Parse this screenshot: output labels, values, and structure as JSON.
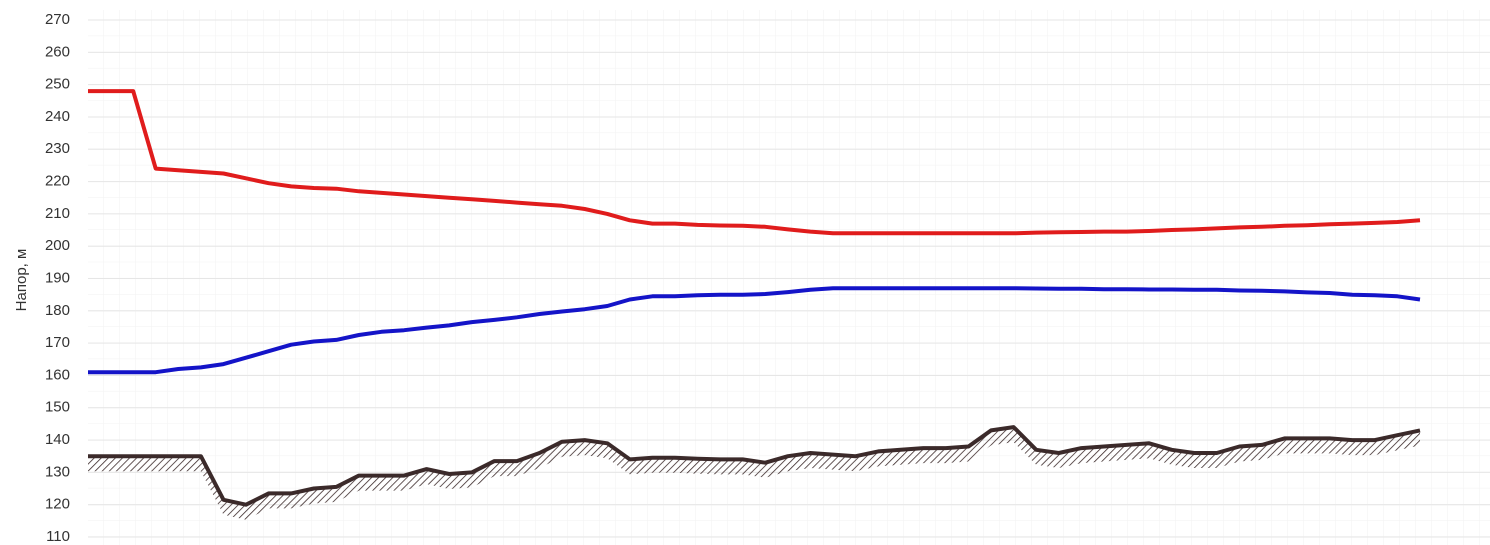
{
  "chart_data": {
    "type": "line",
    "y_label": "Напор, м",
    "categories": [
      null,
      null,
      null,
      null,
      null,
      null,
      null,
      null,
      null,
      null,
      null,
      null,
      null,
      null,
      null,
      null,
      null,
      null,
      null,
      null,
      null,
      null,
      null,
      null,
      null,
      null,
      null,
      null,
      null,
      null,
      null,
      null,
      null,
      null,
      null,
      null,
      null,
      null,
      null,
      null,
      null,
      null,
      null,
      null,
      null,
      null,
      null,
      null,
      null,
      null,
      null,
      null,
      null,
      null,
      null,
      null,
      null,
      null,
      null,
      null
    ],
    "series": [
      {
        "color": "#e01c1c",
        "values": [
          248,
          248,
          248,
          224,
          223.5,
          223,
          222.5,
          221,
          219.5,
          218.5,
          218,
          217.8,
          217,
          216.5,
          216,
          215.5,
          215,
          214.5,
          214,
          213.5,
          213,
          212.5,
          211.5,
          210,
          208,
          207,
          207,
          206.6,
          206.4,
          206.3,
          206,
          205.2,
          204.5,
          204,
          204,
          204,
          204,
          204,
          204,
          204,
          204,
          204,
          204.2,
          204.3,
          204.4,
          204.5,
          204.5,
          204.7,
          205,
          205.2,
          205.5,
          205.8,
          206,
          206.3,
          206.5,
          206.8,
          207,
          207.2,
          207.5,
          208
        ]
      },
      {
        "color": "#1414c8",
        "values": [
          161,
          161,
          161,
          161,
          162,
          162.5,
          163.5,
          165.5,
          167.5,
          169.5,
          170.5,
          171,
          172.5,
          173.5,
          174,
          174.8,
          175.5,
          176.5,
          177.2,
          178,
          179,
          179.8,
          180.5,
          181.5,
          183.5,
          184.5,
          184.5,
          184.8,
          185,
          185,
          185.2,
          185.8,
          186.5,
          187,
          187,
          187,
          187,
          187,
          187,
          187,
          187,
          187,
          186.9,
          186.8,
          186.8,
          186.7,
          186.7,
          186.6,
          186.6,
          186.5,
          186.5,
          186.3,
          186.2,
          186,
          185.7,
          185.5,
          185,
          184.8,
          184.5,
          183.5
        ]
      },
      {
        "color": "#3b2a2a",
        "values": [
          135,
          135,
          135,
          135,
          135,
          135,
          121.5,
          120,
          123.5,
          123.5,
          125,
          125.5,
          129,
          129,
          129,
          131,
          129.5,
          130,
          133.5,
          133.5,
          136,
          139.5,
          140,
          139,
          134,
          134.5,
          134.5,
          134.2,
          134,
          134,
          133,
          135,
          136,
          135.5,
          135,
          136.5,
          137,
          137.5,
          137.5,
          138,
          143,
          144,
          137,
          136,
          137.5,
          138,
          138.5,
          139,
          137,
          136,
          136,
          138,
          138.5,
          140.5,
          140.5,
          140.5,
          140,
          140,
          141.5,
          143
        ]
      }
    ],
    "ylim": [
      110,
      270
    ],
    "yticks": [
      110,
      120,
      130,
      140,
      150,
      160,
      170,
      180,
      190,
      200,
      210,
      220,
      230,
      240,
      250,
      260,
      270
    ],
    "grid": true
  }
}
